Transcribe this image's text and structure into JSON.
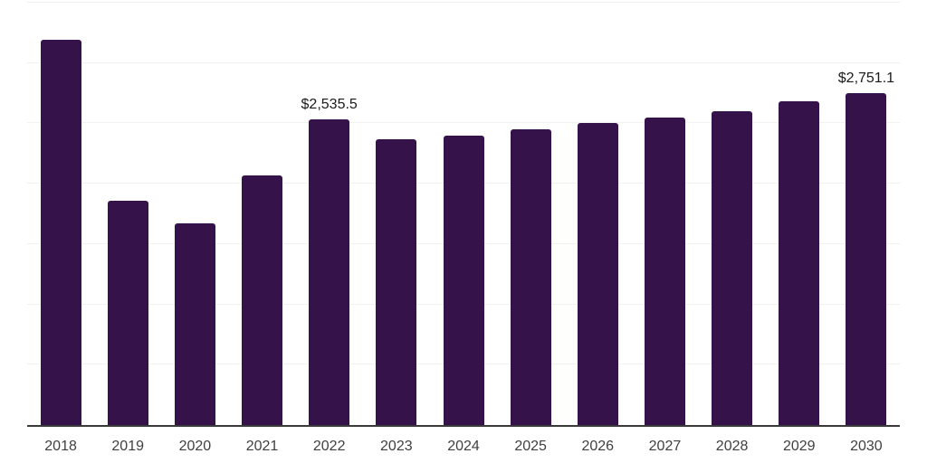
{
  "colors": {
    "background": "#ffffff",
    "bar": "#351249",
    "axis": "#3a3a3a",
    "gridline": "#f2f2f2",
    "value_label": "#1a1a1a",
    "tick_label": "#404040"
  },
  "chart_data": {
    "type": "bar",
    "title": "",
    "xlabel": "",
    "ylabel": "",
    "categories": [
      "2018",
      "2019",
      "2020",
      "2021",
      "2022",
      "2023",
      "2024",
      "2025",
      "2026",
      "2027",
      "2028",
      "2029",
      "2030"
    ],
    "values": [
      3190,
      1860,
      1670,
      2065,
      2535.5,
      2370,
      2400,
      2450,
      2500,
      2550,
      2600,
      2680,
      2751.1
    ],
    "point_labels": [
      "",
      "",
      "",
      "",
      "$2,535.5",
      "",
      "",
      "",
      "",
      "",
      "",
      "",
      "$2,751.1"
    ],
    "ylim": [
      0,
      3500
    ],
    "grid_step": 500,
    "grid": true,
    "legend_position": "none",
    "y_axis_labels_visible": false
  }
}
